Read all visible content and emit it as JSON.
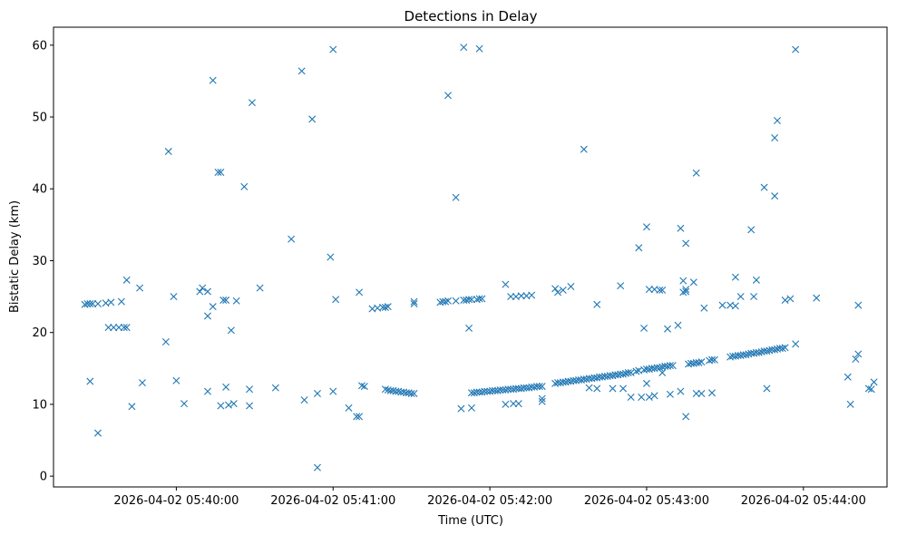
{
  "chart_data": {
    "type": "scatter",
    "title": "Detections in Delay",
    "xlabel": "Time (UTC)",
    "ylabel": "Bistatic Delay (km)",
    "marker": "x",
    "color": "#1f77b4",
    "grid": false,
    "legend": "none",
    "xlim": [
      "2026-04-02 05:39:13",
      "2026-04-02 05:44:32"
    ],
    "ylim": [
      -1.5,
      62.5
    ],
    "x_ticks": [
      "2026-04-02 05:40:00",
      "2026-04-02 05:41:00",
      "2026-04-02 05:42:00",
      "2026-04-02 05:43:00",
      "2026-04-02 05:44:00"
    ],
    "y_ticks": [
      0,
      10,
      20,
      30,
      40,
      50,
      60
    ],
    "points": [
      [
        "2026-04-02 05:39:25",
        23.9
      ],
      [
        "2026-04-02 05:39:26",
        24.0
      ],
      [
        "2026-04-02 05:39:27",
        24.0
      ],
      [
        "2026-04-02 05:39:28",
        24.0
      ],
      [
        "2026-04-02 05:39:30",
        24.0
      ],
      [
        "2026-04-02 05:39:33",
        24.1
      ],
      [
        "2026-04-02 05:39:35",
        24.2
      ],
      [
        "2026-04-02 05:39:39",
        24.3
      ],
      [
        "2026-04-02 05:39:27",
        13.2
      ],
      [
        "2026-04-02 05:39:30",
        6.0
      ],
      [
        "2026-04-02 05:39:34",
        20.7
      ],
      [
        "2026-04-02 05:39:36",
        20.7
      ],
      [
        "2026-04-02 05:39:38",
        20.7
      ],
      [
        "2026-04-02 05:39:40",
        20.7
      ],
      [
        "2026-04-02 05:39:41",
        20.7
      ],
      [
        "2026-04-02 05:39:41",
        27.3
      ],
      [
        "2026-04-02 05:39:43",
        9.7
      ],
      [
        "2026-04-02 05:39:46",
        26.2
      ],
      [
        "2026-04-02 05:39:47",
        13.0
      ],
      [
        "2026-04-02 05:39:56",
        18.7
      ],
      [
        "2026-04-02 05:39:57",
        45.2
      ],
      [
        "2026-04-02 05:39:59",
        25.0
      ],
      [
        "2026-04-02 05:40:00",
        13.3
      ],
      [
        "2026-04-02 05:40:03",
        10.1
      ],
      [
        "2026-04-02 05:40:09",
        25.7
      ],
      [
        "2026-04-02 05:40:10",
        26.2
      ],
      [
        "2026-04-02 05:40:12",
        25.7
      ],
      [
        "2026-04-02 05:40:12",
        22.3
      ],
      [
        "2026-04-02 05:40:12",
        11.8
      ],
      [
        "2026-04-02 05:40:14",
        23.6
      ],
      [
        "2026-04-02 05:40:14",
        55.1
      ],
      [
        "2026-04-02 05:40:16",
        42.3
      ],
      [
        "2026-04-02 05:40:17",
        42.3
      ],
      [
        "2026-04-02 05:40:17",
        9.8
      ],
      [
        "2026-04-02 05:40:18",
        24.5
      ],
      [
        "2026-04-02 05:40:19",
        24.5
      ],
      [
        "2026-04-02 05:40:19",
        12.4
      ],
      [
        "2026-04-02 05:40:20",
        9.9
      ],
      [
        "2026-04-02 05:40:21",
        20.3
      ],
      [
        "2026-04-02 05:40:22",
        10.1
      ],
      [
        "2026-04-02 05:40:23",
        24.4
      ],
      [
        "2026-04-02 05:40:26",
        40.3
      ],
      [
        "2026-04-02 05:40:28",
        9.8
      ],
      [
        "2026-04-02 05:40:28",
        12.1
      ],
      [
        "2026-04-02 05:40:29",
        52.0
      ],
      [
        "2026-04-02 05:40:32",
        26.2
      ],
      [
        "2026-04-02 05:40:38",
        12.3
      ],
      [
        "2026-04-02 05:40:44",
        33.0
      ],
      [
        "2026-04-02 05:40:48",
        56.4
      ],
      [
        "2026-04-02 05:40:49",
        10.6
      ],
      [
        "2026-04-02 05:40:52",
        49.7
      ],
      [
        "2026-04-02 05:40:54",
        1.2
      ],
      [
        "2026-04-02 05:40:54",
        11.5
      ],
      [
        "2026-04-02 05:40:59",
        30.5
      ],
      [
        "2026-04-02 05:41:00",
        59.4
      ],
      [
        "2026-04-02 05:41:00",
        11.8
      ],
      [
        "2026-04-02 05:41:01",
        24.6
      ],
      [
        "2026-04-02 05:41:06",
        9.5
      ],
      [
        "2026-04-02 05:41:09",
        8.3
      ],
      [
        "2026-04-02 05:41:10",
        8.3
      ],
      [
        "2026-04-02 05:41:10",
        25.6
      ],
      [
        "2026-04-02 05:41:11",
        12.6
      ],
      [
        "2026-04-02 05:41:12",
        12.5
      ],
      [
        "2026-04-02 05:41:15",
        23.3
      ],
      [
        "2026-04-02 05:41:17",
        23.4
      ],
      [
        "2026-04-02 05:41:19",
        23.5
      ],
      [
        "2026-04-02 05:41:20",
        23.5
      ],
      [
        "2026-04-02 05:41:21",
        23.6
      ],
      [
        "2026-04-02 05:41:20",
        12.1
      ],
      [
        "2026-04-02 05:41:21",
        12.0
      ],
      [
        "2026-04-02 05:41:22",
        11.9
      ],
      [
        "2026-04-02 05:41:23",
        11.9
      ],
      [
        "2026-04-02 05:41:24",
        11.8
      ],
      [
        "2026-04-02 05:41:25",
        11.8
      ],
      [
        "2026-04-02 05:41:26",
        11.7
      ],
      [
        "2026-04-02 05:41:27",
        11.7
      ],
      [
        "2026-04-02 05:41:28",
        11.6
      ],
      [
        "2026-04-02 05:41:29",
        11.6
      ],
      [
        "2026-04-02 05:41:30",
        11.5
      ],
      [
        "2026-04-02 05:41:31",
        11.5
      ],
      [
        "2026-04-02 05:41:31",
        24.0
      ],
      [
        "2026-04-02 05:41:31",
        24.3
      ],
      [
        "2026-04-02 05:41:41",
        24.2
      ],
      [
        "2026-04-02 05:41:42",
        24.3
      ],
      [
        "2026-04-02 05:41:43",
        24.3
      ],
      [
        "2026-04-02 05:41:44",
        24.4
      ],
      [
        "2026-04-02 05:41:47",
        24.4
      ],
      [
        "2026-04-02 05:41:50",
        24.5
      ],
      [
        "2026-04-02 05:41:51",
        24.5
      ],
      [
        "2026-04-02 05:41:52",
        24.6
      ],
      [
        "2026-04-02 05:41:53",
        24.6
      ],
      [
        "2026-04-02 05:41:55",
        24.6
      ],
      [
        "2026-04-02 05:41:56",
        24.7
      ],
      [
        "2026-04-02 05:41:57",
        24.7
      ],
      [
        "2026-04-02 05:41:44",
        53.0
      ],
      [
        "2026-04-02 05:41:47",
        38.8
      ],
      [
        "2026-04-02 05:41:49",
        9.4
      ],
      [
        "2026-04-02 05:41:50",
        59.7
      ],
      [
        "2026-04-02 05:41:52",
        20.6
      ],
      [
        "2026-04-02 05:41:53",
        9.5
      ],
      [
        "2026-04-02 05:41:56",
        59.5
      ],
      [
        "2026-04-02 05:41:53",
        11.6
      ],
      [
        "2026-04-02 05:41:54",
        11.6
      ],
      [
        "2026-04-02 05:41:55",
        11.7
      ],
      [
        "2026-04-02 05:41:56",
        11.7
      ],
      [
        "2026-04-02 05:41:57",
        11.7
      ],
      [
        "2026-04-02 05:41:58",
        11.8
      ],
      [
        "2026-04-02 05:41:59",
        11.8
      ],
      [
        "2026-04-02 05:42:00",
        11.8
      ],
      [
        "2026-04-02 05:42:01",
        11.9
      ],
      [
        "2026-04-02 05:42:02",
        11.9
      ],
      [
        "2026-04-02 05:42:03",
        11.9
      ],
      [
        "2026-04-02 05:42:04",
        12.0
      ],
      [
        "2026-04-02 05:42:05",
        12.0
      ],
      [
        "2026-04-02 05:42:06",
        12.0
      ],
      [
        "2026-04-02 05:42:07",
        12.1
      ],
      [
        "2026-04-02 05:42:08",
        12.1
      ],
      [
        "2026-04-02 05:42:09",
        12.1
      ],
      [
        "2026-04-02 05:42:10",
        12.2
      ],
      [
        "2026-04-02 05:42:11",
        12.2
      ],
      [
        "2026-04-02 05:42:12",
        12.2
      ],
      [
        "2026-04-02 05:42:13",
        12.3
      ],
      [
        "2026-04-02 05:42:14",
        12.3
      ],
      [
        "2026-04-02 05:42:15",
        12.3
      ],
      [
        "2026-04-02 05:42:16",
        12.4
      ],
      [
        "2026-04-02 05:42:17",
        12.4
      ],
      [
        "2026-04-02 05:42:18",
        12.5
      ],
      [
        "2026-04-02 05:42:19",
        12.5
      ],
      [
        "2026-04-02 05:42:20",
        12.5
      ],
      [
        "2026-04-02 05:42:06",
        26.7
      ],
      [
        "2026-04-02 05:42:06",
        10.0
      ],
      [
        "2026-04-02 05:42:08",
        25.0
      ],
      [
        "2026-04-02 05:42:09",
        10.1
      ],
      [
        "2026-04-02 05:42:10",
        25.0
      ],
      [
        "2026-04-02 05:42:11",
        10.1
      ],
      [
        "2026-04-02 05:42:12",
        25.1
      ],
      [
        "2026-04-02 05:42:14",
        25.1
      ],
      [
        "2026-04-02 05:42:16",
        25.2
      ],
      [
        "2026-04-02 05:42:20",
        10.4
      ],
      [
        "2026-04-02 05:42:20",
        10.8
      ],
      [
        "2026-04-02 05:42:25",
        26.1
      ],
      [
        "2026-04-02 05:42:26",
        25.6
      ],
      [
        "2026-04-02 05:42:28",
        25.9
      ],
      [
        "2026-04-02 05:42:31",
        26.4
      ],
      [
        "2026-04-02 05:42:25",
        12.9
      ],
      [
        "2026-04-02 05:42:26",
        13.0
      ],
      [
        "2026-04-02 05:42:27",
        13.0
      ],
      [
        "2026-04-02 05:42:28",
        13.1
      ],
      [
        "2026-04-02 05:42:29",
        13.1
      ],
      [
        "2026-04-02 05:42:30",
        13.2
      ],
      [
        "2026-04-02 05:42:31",
        13.2
      ],
      [
        "2026-04-02 05:42:32",
        13.3
      ],
      [
        "2026-04-02 05:42:33",
        13.3
      ],
      [
        "2026-04-02 05:42:34",
        13.4
      ],
      [
        "2026-04-02 05:42:35",
        13.4
      ],
      [
        "2026-04-02 05:42:36",
        13.5
      ],
      [
        "2026-04-02 05:42:37",
        13.5
      ],
      [
        "2026-04-02 05:42:38",
        13.6
      ],
      [
        "2026-04-02 05:42:39",
        13.6
      ],
      [
        "2026-04-02 05:42:40",
        13.7
      ],
      [
        "2026-04-02 05:42:41",
        13.7
      ],
      [
        "2026-04-02 05:42:42",
        13.8
      ],
      [
        "2026-04-02 05:42:43",
        13.8
      ],
      [
        "2026-04-02 05:42:44",
        13.9
      ],
      [
        "2026-04-02 05:42:45",
        13.9
      ],
      [
        "2026-04-02 05:42:46",
        14.0
      ],
      [
        "2026-04-02 05:42:47",
        14.0
      ],
      [
        "2026-04-02 05:42:48",
        14.1
      ],
      [
        "2026-04-02 05:42:49",
        14.1
      ],
      [
        "2026-04-02 05:42:50",
        14.2
      ],
      [
        "2026-04-02 05:42:51",
        14.2
      ],
      [
        "2026-04-02 05:42:52",
        14.3
      ],
      [
        "2026-04-02 05:42:53",
        14.4
      ],
      [
        "2026-04-02 05:42:54",
        14.4
      ],
      [
        "2026-04-02 05:42:36",
        45.5
      ],
      [
        "2026-04-02 05:42:38",
        12.3
      ],
      [
        "2026-04-02 05:42:41",
        23.9
      ],
      [
        "2026-04-02 05:42:41",
        12.2
      ],
      [
        "2026-04-02 05:42:47",
        12.2
      ],
      [
        "2026-04-02 05:42:50",
        26.5
      ],
      [
        "2026-04-02 05:42:51",
        12.2
      ],
      [
        "2026-04-02 05:42:54",
        11.0
      ],
      [
        "2026-04-02 05:42:56",
        14.6
      ],
      [
        "2026-04-02 05:42:57",
        14.7
      ],
      [
        "2026-04-02 05:42:58",
        11.0
      ],
      [
        "2026-04-02 05:42:59",
        14.8
      ],
      [
        "2026-04-02 05:43:00",
        14.9
      ],
      [
        "2026-04-02 05:43:01",
        14.9
      ],
      [
        "2026-04-02 05:43:02",
        15.0
      ],
      [
        "2026-04-02 05:43:03",
        15.0
      ],
      [
        "2026-04-02 05:43:04",
        15.1
      ],
      [
        "2026-04-02 05:43:05",
        15.1
      ],
      [
        "2026-04-02 05:43:06",
        15.2
      ],
      [
        "2026-04-02 05:43:07",
        15.3
      ],
      [
        "2026-04-02 05:43:08",
        15.3
      ],
      [
        "2026-04-02 05:43:09",
        15.4
      ],
      [
        "2026-04-02 05:43:10",
        15.4
      ],
      [
        "2026-04-02 05:42:57",
        31.8
      ],
      [
        "2026-04-02 05:42:59",
        20.6
      ],
      [
        "2026-04-02 05:43:00",
        12.9
      ],
      [
        "2026-04-02 05:43:01",
        11.0
      ],
      [
        "2026-04-02 05:43:00",
        34.7
      ],
      [
        "2026-04-02 05:43:01",
        26.0
      ],
      [
        "2026-04-02 05:43:03",
        26.0
      ],
      [
        "2026-04-02 05:43:03",
        11.2
      ],
      [
        "2026-04-02 05:43:05",
        25.9
      ],
      [
        "2026-04-02 05:43:06",
        25.9
      ],
      [
        "2026-04-02 05:43:06",
        14.4
      ],
      [
        "2026-04-02 05:43:08",
        20.5
      ],
      [
        "2026-04-02 05:43:09",
        11.4
      ],
      [
        "2026-04-02 05:43:12",
        21.0
      ],
      [
        "2026-04-02 05:43:13",
        34.5
      ],
      [
        "2026-04-02 05:43:13",
        11.8
      ],
      [
        "2026-04-02 05:43:14",
        25.6
      ],
      [
        "2026-04-02 05:43:14",
        27.2
      ],
      [
        "2026-04-02 05:43:15",
        32.4
      ],
      [
        "2026-04-02 05:43:15",
        26.0
      ],
      [
        "2026-04-02 05:43:15",
        25.7
      ],
      [
        "2026-04-02 05:43:15",
        8.3
      ],
      [
        "2026-04-02 05:43:18",
        27.0
      ],
      [
        "2026-04-02 05:43:19",
        42.2
      ],
      [
        "2026-04-02 05:43:19",
        11.5
      ],
      [
        "2026-04-02 05:43:21",
        11.5
      ],
      [
        "2026-04-02 05:43:22",
        23.4
      ],
      [
        "2026-04-02 05:43:25",
        11.6
      ],
      [
        "2026-04-02 05:43:16",
        15.6
      ],
      [
        "2026-04-02 05:43:17",
        15.7
      ],
      [
        "2026-04-02 05:43:18",
        15.7
      ],
      [
        "2026-04-02 05:43:19",
        15.8
      ],
      [
        "2026-04-02 05:43:20",
        15.8
      ],
      [
        "2026-04-02 05:43:21",
        15.9
      ],
      [
        "2026-04-02 05:43:24",
        16.1
      ],
      [
        "2026-04-02 05:43:25",
        16.2
      ],
      [
        "2026-04-02 05:43:26",
        16.2
      ],
      [
        "2026-04-02 05:43:29",
        23.8
      ],
      [
        "2026-04-02 05:43:32",
        23.8
      ],
      [
        "2026-04-02 05:43:34",
        27.7
      ],
      [
        "2026-04-02 05:43:34",
        23.7
      ],
      [
        "2026-04-02 05:43:36",
        25.0
      ],
      [
        "2026-04-02 05:43:40",
        34.3
      ],
      [
        "2026-04-02 05:43:41",
        25.0
      ],
      [
        "2026-04-02 05:43:42",
        27.3
      ],
      [
        "2026-04-02 05:43:45",
        40.2
      ],
      [
        "2026-04-02 05:43:46",
        12.2
      ],
      [
        "2026-04-02 05:43:49",
        47.1
      ],
      [
        "2026-04-02 05:43:49",
        39.0
      ],
      [
        "2026-04-02 05:43:50",
        49.5
      ],
      [
        "2026-04-02 05:43:53",
        24.5
      ],
      [
        "2026-04-02 05:43:55",
        24.7
      ],
      [
        "2026-04-02 05:43:57",
        59.4
      ],
      [
        "2026-04-02 05:43:57",
        18.4
      ],
      [
        "2026-04-02 05:43:32",
        16.6
      ],
      [
        "2026-04-02 05:43:33",
        16.7
      ],
      [
        "2026-04-02 05:43:34",
        16.7
      ],
      [
        "2026-04-02 05:43:35",
        16.8
      ],
      [
        "2026-04-02 05:43:36",
        16.8
      ],
      [
        "2026-04-02 05:43:37",
        16.9
      ],
      [
        "2026-04-02 05:43:38",
        16.9
      ],
      [
        "2026-04-02 05:43:39",
        17.0
      ],
      [
        "2026-04-02 05:43:40",
        17.1
      ],
      [
        "2026-04-02 05:43:41",
        17.1
      ],
      [
        "2026-04-02 05:43:42",
        17.2
      ],
      [
        "2026-04-02 05:43:43",
        17.2
      ],
      [
        "2026-04-02 05:43:44",
        17.3
      ],
      [
        "2026-04-02 05:43:45",
        17.4
      ],
      [
        "2026-04-02 05:43:46",
        17.4
      ],
      [
        "2026-04-02 05:43:47",
        17.5
      ],
      [
        "2026-04-02 05:43:48",
        17.6
      ],
      [
        "2026-04-02 05:43:49",
        17.6
      ],
      [
        "2026-04-02 05:43:50",
        17.7
      ],
      [
        "2026-04-02 05:43:51",
        17.8
      ],
      [
        "2026-04-02 05:43:52",
        17.8
      ],
      [
        "2026-04-02 05:43:53",
        17.9
      ],
      [
        "2026-04-02 05:44:05",
        24.8
      ],
      [
        "2026-04-02 05:44:17",
        13.8
      ],
      [
        "2026-04-02 05:44:18",
        10.0
      ],
      [
        "2026-04-02 05:44:20",
        16.3
      ],
      [
        "2026-04-02 05:44:21",
        17.0
      ],
      [
        "2026-04-02 05:44:21",
        23.8
      ],
      [
        "2026-04-02 05:44:25",
        12.2
      ],
      [
        "2026-04-02 05:44:26",
        12.1
      ],
      [
        "2026-04-02 05:44:27",
        13.1
      ]
    ]
  }
}
